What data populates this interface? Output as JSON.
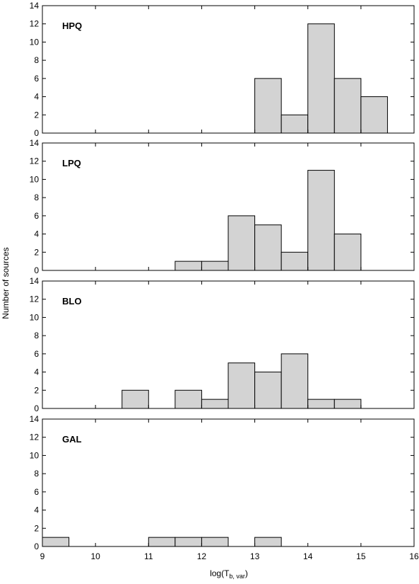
{
  "chart_data": {
    "type": "bar",
    "subtype": "histogram-stack",
    "xlim": [
      9,
      16
    ],
    "ylim": [
      0,
      14
    ],
    "x_ticks": [
      9,
      10,
      11,
      12,
      13,
      14,
      15,
      16
    ],
    "y_ticks": [
      0,
      2,
      4,
      6,
      8,
      10,
      12,
      14
    ],
    "bin_width": 0.5,
    "xlabel_main": "log(T",
    "xlabel_sub": "b, var",
    "xlabel_close": ")",
    "ylabel": "Number of sources",
    "grid": false,
    "bar_color": "#d3d3d3",
    "panels": [
      {
        "name": "HPQ",
        "bins": [
          {
            "x0": 13.0,
            "count": 6
          },
          {
            "x0": 13.5,
            "count": 2
          },
          {
            "x0": 14.0,
            "count": 12
          },
          {
            "x0": 14.5,
            "count": 6
          },
          {
            "x0": 15.0,
            "count": 4
          }
        ]
      },
      {
        "name": "LPQ",
        "bins": [
          {
            "x0": 11.5,
            "count": 1
          },
          {
            "x0": 12.0,
            "count": 1
          },
          {
            "x0": 12.5,
            "count": 6
          },
          {
            "x0": 13.0,
            "count": 5
          },
          {
            "x0": 13.5,
            "count": 2
          },
          {
            "x0": 14.0,
            "count": 11
          },
          {
            "x0": 14.5,
            "count": 4
          }
        ]
      },
      {
        "name": "BLO",
        "bins": [
          {
            "x0": 10.5,
            "count": 2
          },
          {
            "x0": 11.5,
            "count": 2
          },
          {
            "x0": 12.0,
            "count": 1
          },
          {
            "x0": 12.5,
            "count": 5
          },
          {
            "x0": 13.0,
            "count": 4
          },
          {
            "x0": 13.5,
            "count": 6
          },
          {
            "x0": 14.0,
            "count": 1
          },
          {
            "x0": 14.5,
            "count": 1
          }
        ]
      },
      {
        "name": "GAL",
        "bins": [
          {
            "x0": 9.0,
            "count": 1
          },
          {
            "x0": 11.0,
            "count": 1
          },
          {
            "x0": 11.5,
            "count": 1
          },
          {
            "x0": 12.0,
            "count": 1
          },
          {
            "x0": 13.0,
            "count": 1
          }
        ]
      }
    ]
  }
}
